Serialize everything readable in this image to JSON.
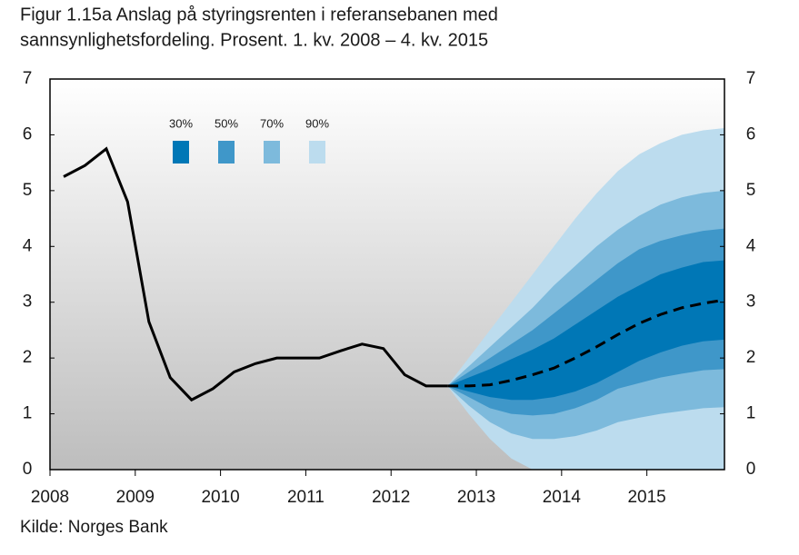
{
  "chart_data": {
    "type": "fan",
    "title_lines": [
      "Figur 1.15a Anslag på styringsrenten i referansebanen med",
      "sannsynlighetsfordeling. Prosent. 1. kv. 2008 – 4. kv. 2015"
    ],
    "source": "Kilde: Norges Bank",
    "xlim": [
      2008,
      2015.91
    ],
    "xticks": [
      2008,
      2009,
      2010,
      2011,
      2012,
      2013,
      2014,
      2015
    ],
    "ylim": [
      0,
      7
    ],
    "yticks": [
      0,
      1,
      2,
      3,
      4,
      5,
      6,
      7
    ],
    "y2lim": [
      0,
      7
    ],
    "y2ticks": [
      0,
      1,
      2,
      3,
      4,
      5,
      6,
      7
    ],
    "fan_x": [
      2012.66,
      2012.91,
      2013.16,
      2013.41,
      2013.66,
      2013.91,
      2014.16,
      2014.41,
      2014.66,
      2014.91,
      2015.16,
      2015.41,
      2015.66,
      2015.91
    ],
    "bands": [
      {
        "name": "90%",
        "color": "#bcdcee",
        "low": [
          1.5,
          1.0,
          0.55,
          0.2,
          0,
          0,
          0,
          0,
          0,
          0,
          0,
          0,
          0,
          0
        ],
        "high": [
          1.5,
          2.0,
          2.5,
          3.0,
          3.5,
          4.0,
          4.5,
          4.95,
          5.35,
          5.65,
          5.85,
          6.0,
          6.08,
          6.12
        ]
      },
      {
        "name": "70%",
        "color": "#7dbadc",
        "low": [
          1.5,
          1.15,
          0.85,
          0.65,
          0.55,
          0.55,
          0.6,
          0.7,
          0.85,
          0.93,
          1.0,
          1.05,
          1.1,
          1.12
        ],
        "high": [
          1.5,
          1.85,
          2.2,
          2.55,
          2.9,
          3.3,
          3.65,
          4.0,
          4.3,
          4.55,
          4.75,
          4.88,
          4.96,
          5.0
        ]
      },
      {
        "name": "50%",
        "color": "#3f97c9",
        "low": [
          1.5,
          1.3,
          1.1,
          1.0,
          0.97,
          1.0,
          1.1,
          1.25,
          1.45,
          1.55,
          1.65,
          1.72,
          1.78,
          1.8
        ],
        "high": [
          1.5,
          1.75,
          2.0,
          2.25,
          2.5,
          2.8,
          3.1,
          3.4,
          3.7,
          3.95,
          4.1,
          4.2,
          4.28,
          4.32
        ]
      },
      {
        "name": "30%",
        "color": "#0077b6",
        "low": [
          1.5,
          1.4,
          1.3,
          1.25,
          1.25,
          1.3,
          1.4,
          1.55,
          1.75,
          1.95,
          2.1,
          2.22,
          2.3,
          2.33
        ],
        "high": [
          1.5,
          1.65,
          1.8,
          1.98,
          2.15,
          2.35,
          2.6,
          2.85,
          3.1,
          3.3,
          3.5,
          3.62,
          3.72,
          3.75
        ]
      }
    ],
    "lines": [
      {
        "color": "#000000",
        "dash": false,
        "x": [
          2008.16,
          2008.41,
          2008.66,
          2008.91,
          2009.16,
          2009.41,
          2009.66,
          2009.91,
          2010.16,
          2010.41,
          2010.66,
          2010.91,
          2011.16,
          2011.41,
          2011.66,
          2011.91,
          2012.16,
          2012.41,
          2012.66
        ],
        "values": [
          5.25,
          5.45,
          5.75,
          4.8,
          2.65,
          1.65,
          1.25,
          1.45,
          1.75,
          1.9,
          2.0,
          2.0,
          2.0,
          2.13,
          2.25,
          2.17,
          1.7,
          1.5,
          1.5
        ]
      },
      {
        "color": "#000000",
        "dash": true,
        "x": [
          2012.66,
          2012.91,
          2013.16,
          2013.41,
          2013.66,
          2013.91,
          2014.16,
          2014.41,
          2014.66,
          2014.91,
          2015.16,
          2015.41,
          2015.66,
          2015.91
        ],
        "values": [
          1.5,
          1.5,
          1.52,
          1.6,
          1.7,
          1.82,
          2.0,
          2.2,
          2.42,
          2.62,
          2.78,
          2.9,
          2.98,
          3.04
        ]
      }
    ]
  }
}
